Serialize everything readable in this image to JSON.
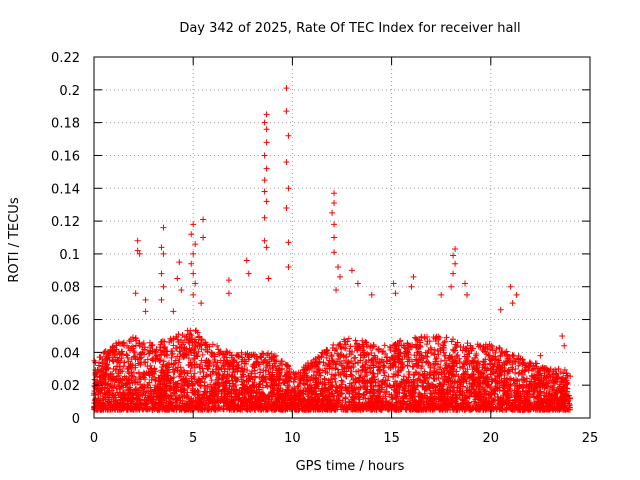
{
  "chart_data": {
    "type": "scatter",
    "title": "Day 342 of 2025, Rate Of TEC Index for receiver hall",
    "xlabel": "GPS time / hours",
    "ylabel": "ROTI / TECUs",
    "xlim": [
      0,
      25
    ],
    "ylim": [
      0,
      0.22
    ],
    "xticks": [
      0,
      5,
      10,
      15,
      20,
      25
    ],
    "xtick_labels": [
      "0",
      "5",
      "10",
      "15",
      "20",
      "25"
    ],
    "yticks": [
      0,
      0.02,
      0.04,
      0.06,
      0.08,
      0.1,
      0.12,
      0.14,
      0.16,
      0.18,
      0.2,
      0.22
    ],
    "ytick_labels": [
      "0",
      "0.02",
      "0.04",
      "0.06",
      "0.08",
      "0.1",
      "0.12",
      "0.14",
      "0.16",
      "0.18",
      "0.2",
      "0.22"
    ],
    "grid": true,
    "marker": "+",
    "color": "#ff0000",
    "baseline": {
      "hours": [
        0,
        1,
        2,
        3,
        4,
        5,
        6,
        7,
        8,
        9,
        10,
        11,
        12,
        13,
        14,
        15,
        16,
        17,
        18,
        19,
        20,
        21,
        22,
        23,
        24
      ],
      "envelope_max": [
        0.035,
        0.045,
        0.05,
        0.045,
        0.05,
        0.055,
        0.045,
        0.04,
        0.04,
        0.04,
        0.03,
        0.035,
        0.045,
        0.05,
        0.045,
        0.045,
        0.05,
        0.05,
        0.05,
        0.045,
        0.045,
        0.04,
        0.035,
        0.03,
        0.03
      ],
      "envelope_min": 0.005
    },
    "points": [
      {
        "x": 2.2,
        "y": 0.108
      },
      {
        "x": 2.2,
        "y": 0.102
      },
      {
        "x": 2.3,
        "y": 0.1
      },
      {
        "x": 2.1,
        "y": 0.076
      },
      {
        "x": 2.6,
        "y": 0.072
      },
      {
        "x": 2.6,
        "y": 0.065
      },
      {
        "x": 3.5,
        "y": 0.116
      },
      {
        "x": 3.4,
        "y": 0.104
      },
      {
        "x": 3.5,
        "y": 0.1
      },
      {
        "x": 3.4,
        "y": 0.088
      },
      {
        "x": 3.5,
        "y": 0.08
      },
      {
        "x": 3.4,
        "y": 0.072
      },
      {
        "x": 4.3,
        "y": 0.095
      },
      {
        "x": 4.2,
        "y": 0.085
      },
      {
        "x": 4.4,
        "y": 0.078
      },
      {
        "x": 4.0,
        "y": 0.065
      },
      {
        "x": 5.0,
        "y": 0.118
      },
      {
        "x": 4.9,
        "y": 0.112
      },
      {
        "x": 5.1,
        "y": 0.106
      },
      {
        "x": 5.0,
        "y": 0.1
      },
      {
        "x": 4.9,
        "y": 0.094
      },
      {
        "x": 5.0,
        "y": 0.088
      },
      {
        "x": 5.1,
        "y": 0.082
      },
      {
        "x": 5.0,
        "y": 0.075
      },
      {
        "x": 5.5,
        "y": 0.121
      },
      {
        "x": 5.5,
        "y": 0.11
      },
      {
        "x": 5.4,
        "y": 0.07
      },
      {
        "x": 6.8,
        "y": 0.084
      },
      {
        "x": 6.8,
        "y": 0.076
      },
      {
        "x": 7.7,
        "y": 0.096
      },
      {
        "x": 7.8,
        "y": 0.088
      },
      {
        "x": 8.7,
        "y": 0.185
      },
      {
        "x": 8.6,
        "y": 0.18
      },
      {
        "x": 8.7,
        "y": 0.176
      },
      {
        "x": 8.7,
        "y": 0.168
      },
      {
        "x": 8.6,
        "y": 0.16
      },
      {
        "x": 8.7,
        "y": 0.152
      },
      {
        "x": 8.6,
        "y": 0.145
      },
      {
        "x": 8.6,
        "y": 0.138
      },
      {
        "x": 8.7,
        "y": 0.132
      },
      {
        "x": 8.6,
        "y": 0.122
      },
      {
        "x": 8.6,
        "y": 0.108
      },
      {
        "x": 8.7,
        "y": 0.104
      },
      {
        "x": 8.8,
        "y": 0.085
      },
      {
        "x": 9.7,
        "y": 0.201
      },
      {
        "x": 9.7,
        "y": 0.187
      },
      {
        "x": 9.8,
        "y": 0.172
      },
      {
        "x": 9.7,
        "y": 0.156
      },
      {
        "x": 9.8,
        "y": 0.14
      },
      {
        "x": 9.7,
        "y": 0.128
      },
      {
        "x": 9.8,
        "y": 0.107
      },
      {
        "x": 9.8,
        "y": 0.092
      },
      {
        "x": 12.1,
        "y": 0.137
      },
      {
        "x": 12.1,
        "y": 0.131
      },
      {
        "x": 12.0,
        "y": 0.125
      },
      {
        "x": 12.1,
        "y": 0.118
      },
      {
        "x": 12.1,
        "y": 0.11
      },
      {
        "x": 12.1,
        "y": 0.101
      },
      {
        "x": 12.3,
        "y": 0.092
      },
      {
        "x": 12.4,
        "y": 0.086
      },
      {
        "x": 12.2,
        "y": 0.078
      },
      {
        "x": 13.0,
        "y": 0.09
      },
      {
        "x": 13.3,
        "y": 0.082
      },
      {
        "x": 14.0,
        "y": 0.075
      },
      {
        "x": 15.1,
        "y": 0.082
      },
      {
        "x": 15.2,
        "y": 0.076
      },
      {
        "x": 16.1,
        "y": 0.086
      },
      {
        "x": 16.0,
        "y": 0.08
      },
      {
        "x": 18.2,
        "y": 0.103
      },
      {
        "x": 18.1,
        "y": 0.099
      },
      {
        "x": 18.2,
        "y": 0.094
      },
      {
        "x": 18.1,
        "y": 0.088
      },
      {
        "x": 18.0,
        "y": 0.08
      },
      {
        "x": 17.5,
        "y": 0.075
      },
      {
        "x": 18.7,
        "y": 0.082
      },
      {
        "x": 18.8,
        "y": 0.075
      },
      {
        "x": 21.0,
        "y": 0.08
      },
      {
        "x": 21.3,
        "y": 0.075
      },
      {
        "x": 21.1,
        "y": 0.07
      },
      {
        "x": 20.5,
        "y": 0.066
      },
      {
        "x": 23.6,
        "y": 0.05
      },
      {
        "x": 23.7,
        "y": 0.044
      },
      {
        "x": 22.5,
        "y": 0.038
      }
    ]
  }
}
